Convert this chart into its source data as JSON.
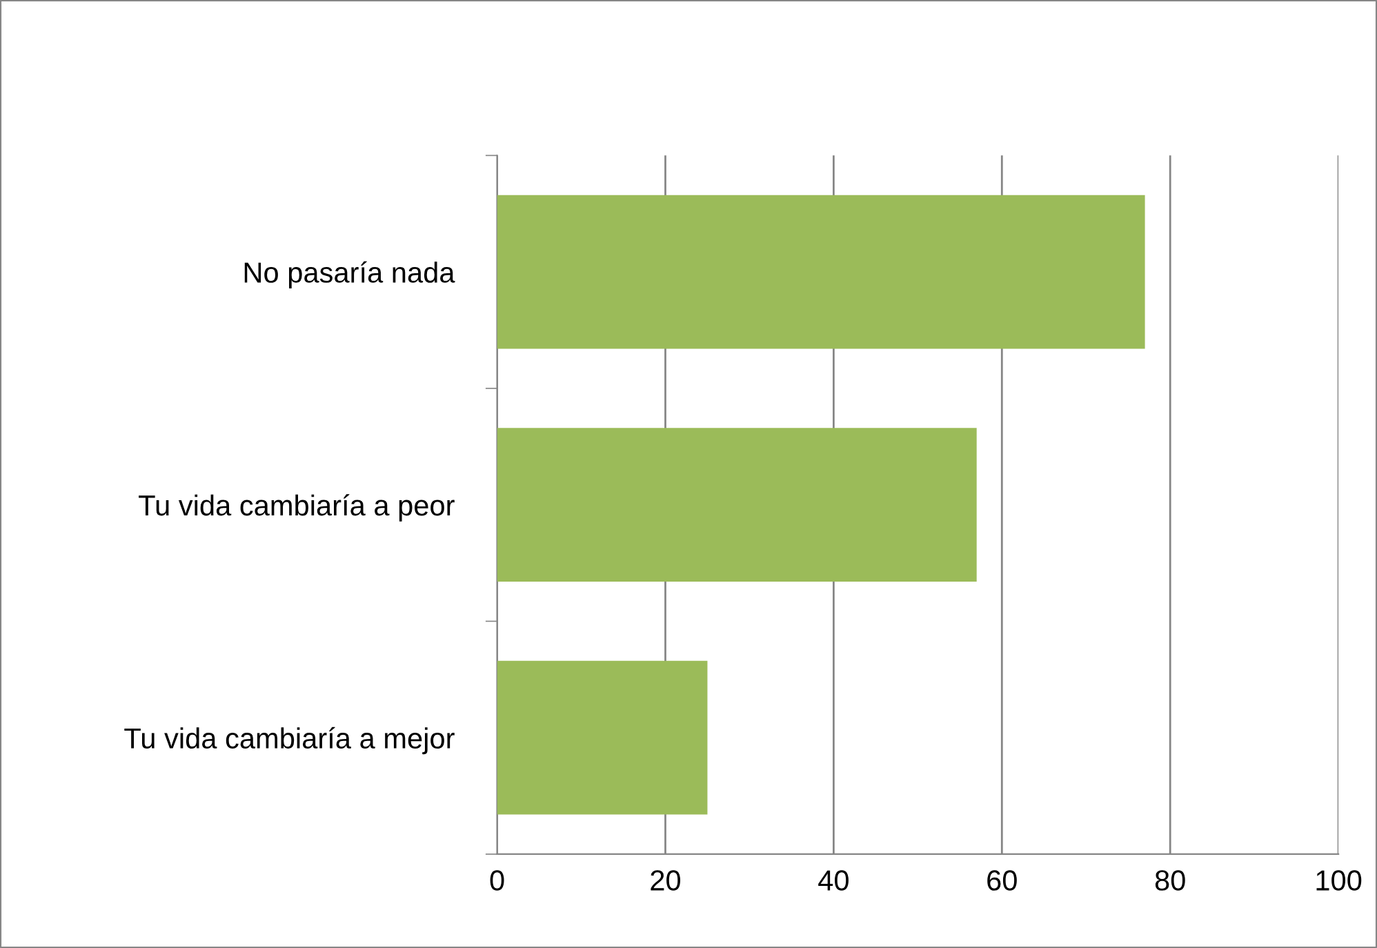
{
  "chart_data": {
    "type": "bar",
    "orientation": "horizontal",
    "categories": [
      "No pasaría nada",
      "Tu vida cambiaría a peor",
      "Tu vida cambiaría a mejor"
    ],
    "values": [
      77,
      57,
      25
    ],
    "color": "#9bbb59",
    "xlim": [
      0,
      100
    ],
    "xticks": [
      0,
      20,
      40,
      60,
      80,
      100
    ],
    "grid": "x",
    "legend": false
  }
}
